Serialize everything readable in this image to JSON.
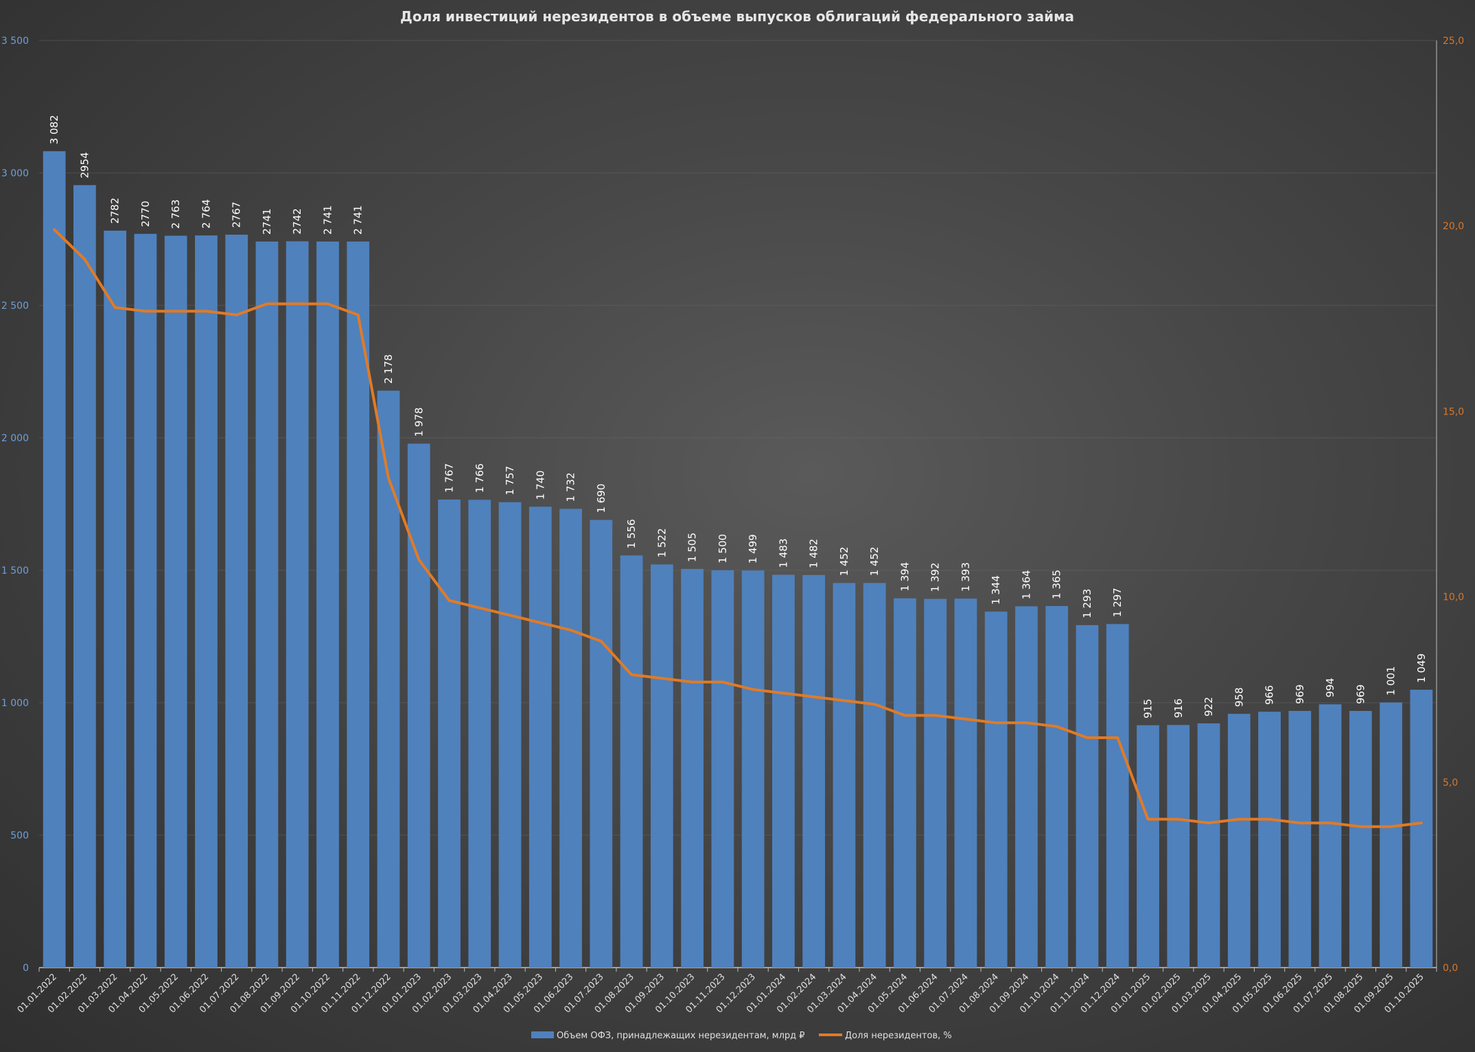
{
  "chart_data": {
    "type": "bar",
    "title": "Доля инвестиций нерезидентов в объеме выпусков облигаций федерального займа",
    "xlabel": "",
    "ylabel": "",
    "ylim": [
      0,
      3500
    ],
    "y2lim": [
      0,
      25
    ],
    "grid": true,
    "legend_position": "bottom",
    "yticks": [
      "0",
      "500",
      "1 000",
      "1 500",
      "2 000",
      "2 500",
      "3 000",
      "3 500"
    ],
    "y2ticks": [
      "0,0",
      "5,0",
      "10,0",
      "15,0",
      "20,0",
      "25,0"
    ],
    "categories": [
      "01.01.2022",
      "01.02.2022",
      "01.03.2022",
      "01.04.2022",
      "01.05.2022",
      "01.06.2022",
      "01.07.2022",
      "01.08.2022",
      "01.09.2022",
      "01.10.2022",
      "01.11.2022",
      "01.12.2022",
      "01.01.2023",
      "01.02.2023",
      "01.03.2023",
      "01.04.2023",
      "01.05.2023",
      "01.06.2023",
      "01.07.2023",
      "01.08.2023",
      "01.09.2023",
      "01.10.2023",
      "01.11.2023",
      "01.12.2023",
      "01.01.2024",
      "01.02.2024",
      "01.03.2024",
      "01.04.2024",
      "01.05.2024",
      "01.06.2024",
      "01.07.2024",
      "01.08.2024",
      "01.09.2024",
      "01.10.2024",
      "01.11.2024",
      "01.12.2024",
      "01.01.2025",
      "01.02.2025",
      "01.03.2025",
      "01.04.2025",
      "01.05.2025",
      "01.06.2025",
      "01.07.2025",
      "01.08.2025",
      "01.09.2025",
      "01.10.2025"
    ],
    "series": [
      {
        "name": "Объем ОФЗ, принадлежащих нерезидентам, млрд ₽",
        "type": "bar",
        "axis": "left",
        "color": "#4f81bd",
        "values": [
          3082,
          2954,
          2782,
          2770,
          2763,
          2764,
          2767,
          2741,
          2742,
          2741,
          2741,
          2178,
          1978,
          1767,
          1766,
          1757,
          1740,
          1732,
          1690,
          1556,
          1522,
          1505,
          1500,
          1499,
          1483,
          1482,
          1452,
          1452,
          1394,
          1392,
          1393,
          1344,
          1364,
          1365,
          1293,
          1297,
          915,
          916,
          922,
          958,
          966,
          969,
          994,
          969,
          1001,
          1049
        ],
        "labels": [
          "3 082",
          "2954",
          "2782",
          "2770",
          "2 763",
          "2 764",
          "2767",
          "2741",
          "2742",
          "2 741",
          "2 741",
          "2 178",
          "1 978",
          "1 767",
          "1 766",
          "1 757",
          "1 740",
          "1 732",
          "1 690",
          "1 556",
          "1 522",
          "1 505",
          "1 500",
          "1 499",
          "1 483",
          "1 482",
          "1 452",
          "1 452",
          "1 394",
          "1 392",
          "1 393",
          "1 344",
          "1 364",
          "1 365",
          "1 293",
          "1 297",
          "915",
          "916",
          "922",
          "958",
          "966",
          "969",
          "994",
          "969",
          "1 001",
          "1 049"
        ]
      },
      {
        "name": "Доля нерезидентов, %",
        "type": "line",
        "axis": "right",
        "color": "#e07b27",
        "values": [
          19.9,
          19.1,
          17.8,
          17.7,
          17.7,
          17.7,
          17.6,
          17.9,
          17.9,
          17.9,
          17.6,
          13.2,
          11.0,
          9.9,
          9.7,
          9.5,
          9.3,
          9.1,
          8.8,
          7.9,
          7.8,
          7.7,
          7.7,
          7.5,
          7.4,
          7.3,
          7.2,
          7.1,
          6.8,
          6.8,
          6.7,
          6.6,
          6.6,
          6.5,
          6.2,
          6.2,
          4.0,
          4.0,
          3.9,
          4.0,
          4.0,
          3.9,
          3.9,
          3.8,
          3.8,
          3.9
        ]
      }
    ]
  }
}
